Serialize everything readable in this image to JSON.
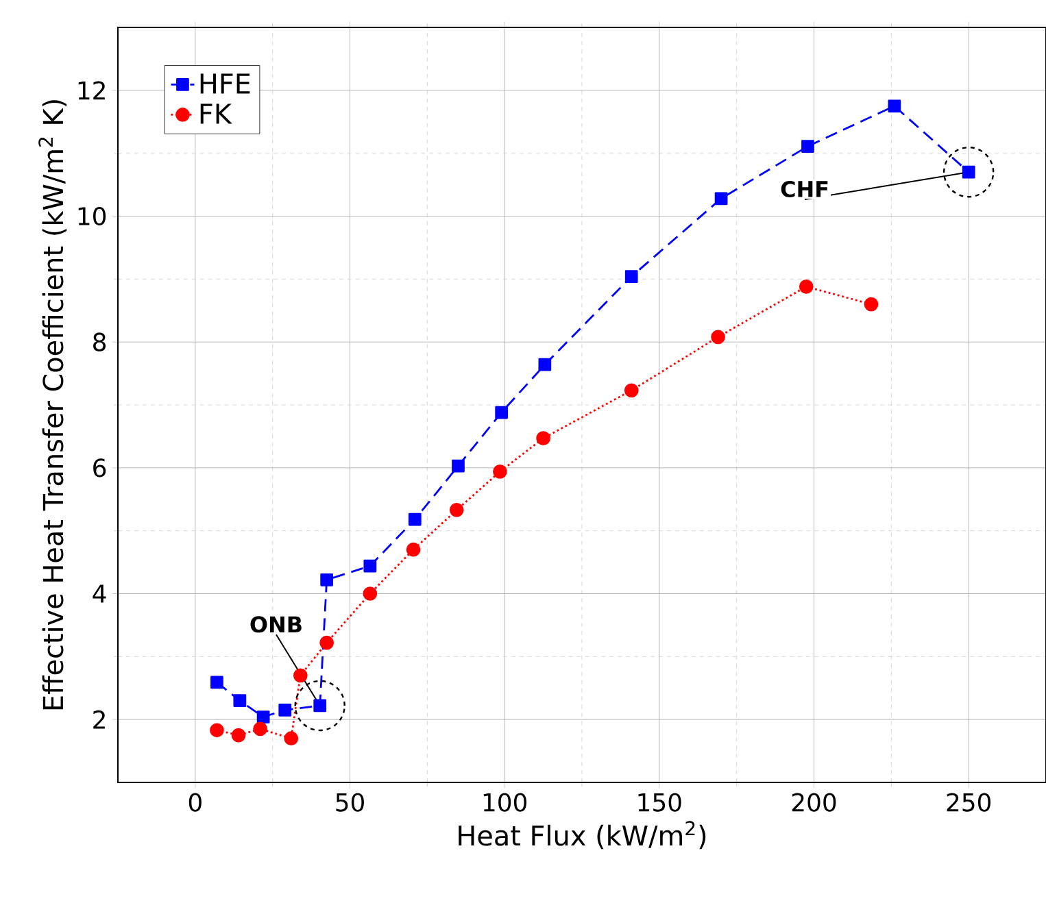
{
  "chart_data": {
    "type": "line",
    "xlabel": "Heat Flux (kW/m$^{2}$)",
    "ylabel": "Effective Heat Transfer Coefficient (kW/m$^{2}$ K)",
    "xlim": [
      -25,
      275
    ],
    "ylim": [
      1,
      13
    ],
    "xticks": [
      0,
      50,
      100,
      150,
      200,
      250
    ],
    "yticks": [
      2,
      4,
      6,
      8,
      10,
      12
    ],
    "grid": true,
    "legend": "top left",
    "series": [
      {
        "name": "HFE",
        "color": "#0000ff",
        "marker": "square",
        "line_style": "dashed",
        "x": [
          7,
          14.4,
          22,
          29,
          40.3,
          42.5,
          56.5,
          71,
          85,
          99,
          113,
          141,
          170,
          198,
          226,
          250
        ],
        "values": [
          2.59,
          2.3,
          2.04,
          2.15,
          2.22,
          4.22,
          4.44,
          5.18,
          6.03,
          6.88,
          7.64,
          9.04,
          10.28,
          11.11,
          11.75,
          10.7
        ]
      },
      {
        "name": "FK",
        "color": "#ff0000",
        "marker": "circle",
        "line_style": "dotted",
        "x": [
          7,
          14,
          21,
          31,
          34,
          42.5,
          56.5,
          70.5,
          84.5,
          98.5,
          112.5,
          141,
          169,
          197.5,
          218.5
        ],
        "values": [
          1.83,
          1.75,
          1.85,
          1.7,
          2.7,
          3.22,
          4.0,
          4.7,
          5.33,
          5.94,
          6.47,
          7.23,
          8.08,
          8.88,
          8.6
        ]
      }
    ],
    "annotations": [
      {
        "text": "ONB",
        "x": 40.3,
        "y": 2.22
      },
      {
        "text": "CHF",
        "x": 250,
        "y": 10.7
      }
    ]
  }
}
